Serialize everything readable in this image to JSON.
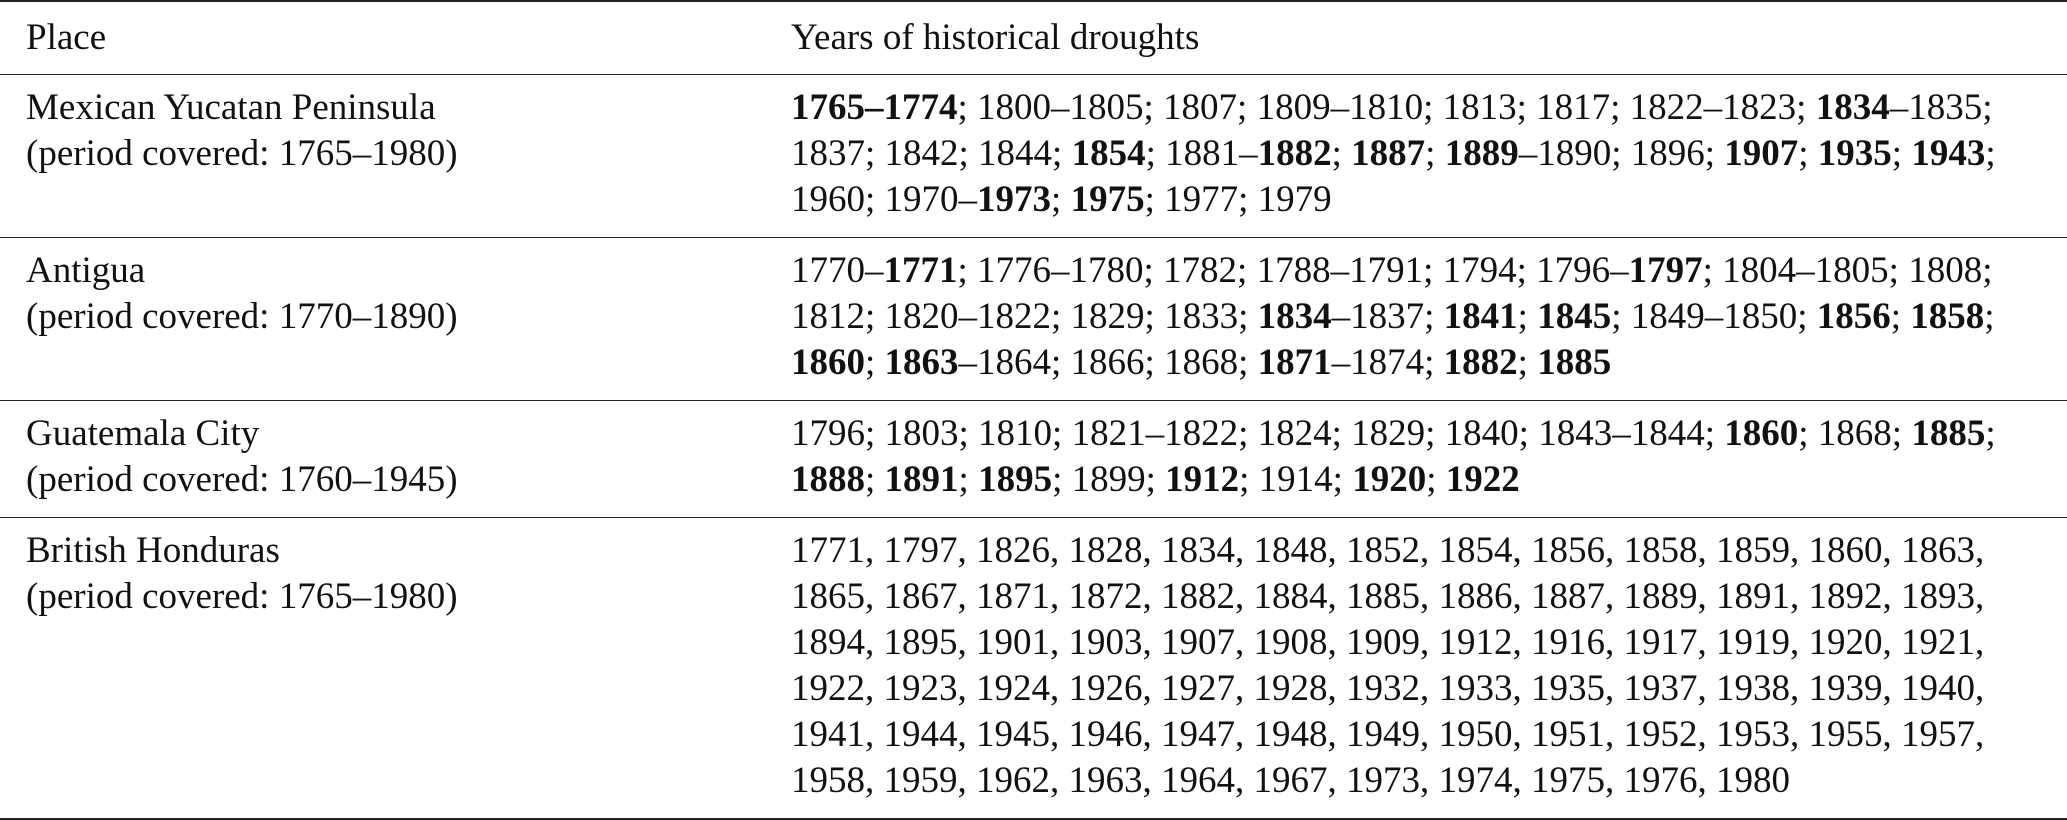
{
  "table": {
    "header": [
      "Place",
      "Years of historical droughts"
    ],
    "rows": [
      {
        "place": "Mexican Yucatan Peninsula",
        "period": "(period covered: 1765–1980)",
        "years": [
          {
            "text": "1765–1774",
            "bold": true
          },
          {
            "text": "; 1800–1805; 1807; 1809–1810; 1813; 1817; 1822–1823; ",
            "bold": false
          },
          {
            "text": "1834",
            "bold": true
          },
          {
            "text": "–1835; 1837; 1842; 1844; ",
            "bold": false
          },
          {
            "text": "1854",
            "bold": true
          },
          {
            "text": "; 1881–",
            "bold": false
          },
          {
            "text": "1882",
            "bold": true
          },
          {
            "text": "; ",
            "bold": false
          },
          {
            "text": "1887",
            "bold": true
          },
          {
            "text": "; ",
            "bold": false
          },
          {
            "text": "1889",
            "bold": true
          },
          {
            "text": "–1890; 1896; ",
            "bold": false
          },
          {
            "text": "1907",
            "bold": true
          },
          {
            "text": "; ",
            "bold": false
          },
          {
            "text": "1935",
            "bold": true
          },
          {
            "text": "; ",
            "bold": false
          },
          {
            "text": "1943",
            "bold": true
          },
          {
            "text": "; 1960; 1970–",
            "bold": false
          },
          {
            "text": "1973",
            "bold": true
          },
          {
            "text": "; ",
            "bold": false
          },
          {
            "text": "1975",
            "bold": true
          },
          {
            "text": "; 1977; 1979",
            "bold": false
          }
        ]
      },
      {
        "place": "Antigua",
        "period": "(period covered: 1770–1890)",
        "years": [
          {
            "text": "1770–",
            "bold": false
          },
          {
            "text": "1771",
            "bold": true
          },
          {
            "text": "; 1776–1780; 1782; 1788–1791; 1794; 1796–",
            "bold": false
          },
          {
            "text": "1797",
            "bold": true
          },
          {
            "text": "; 1804–1805; 1808; 1812; 1820–1822; 1829; 1833; ",
            "bold": false
          },
          {
            "text": "1834",
            "bold": true
          },
          {
            "text": "–1837; ",
            "bold": false
          },
          {
            "text": "1841",
            "bold": true
          },
          {
            "text": "; ",
            "bold": false
          },
          {
            "text": "1845",
            "bold": true
          },
          {
            "text": "; 1849–1850; ",
            "bold": false
          },
          {
            "text": "1856",
            "bold": true
          },
          {
            "text": "; ",
            "bold": false
          },
          {
            "text": "1858",
            "bold": true
          },
          {
            "text": "; ",
            "bold": false
          },
          {
            "text": "1860",
            "bold": true
          },
          {
            "text": "; ",
            "bold": false
          },
          {
            "text": "1863",
            "bold": true
          },
          {
            "text": "–1864; 1866; 1868; ",
            "bold": false
          },
          {
            "text": "1871",
            "bold": true
          },
          {
            "text": "–1874; ",
            "bold": false
          },
          {
            "text": "1882",
            "bold": true
          },
          {
            "text": "; ",
            "bold": false
          },
          {
            "text": "1885",
            "bold": true
          }
        ]
      },
      {
        "place": "Guatemala City",
        "period": "(period covered: 1760–1945)",
        "years": [
          {
            "text": "1796; 1803; 1810; 1821–1822; 1824; 1829; 1840; 1843–1844; ",
            "bold": false
          },
          {
            "text": "1860",
            "bold": true
          },
          {
            "text": "; 1868; ",
            "bold": false
          },
          {
            "text": "1885",
            "bold": true
          },
          {
            "text": "; ",
            "bold": false
          },
          {
            "text": "1888",
            "bold": true
          },
          {
            "text": "; ",
            "bold": false
          },
          {
            "text": "1891",
            "bold": true
          },
          {
            "text": "; ",
            "bold": false
          },
          {
            "text": "1895",
            "bold": true
          },
          {
            "text": "; 1899; ",
            "bold": false
          },
          {
            "text": "1912",
            "bold": true
          },
          {
            "text": "; 1914; ",
            "bold": false
          },
          {
            "text": "1920",
            "bold": true
          },
          {
            "text": "; ",
            "bold": false
          },
          {
            "text": "1922",
            "bold": true
          }
        ]
      },
      {
        "place": "British Honduras",
        "period": "(period covered: 1765–1980)",
        "years": [
          {
            "text": "1771, 1797, 1826, 1828, 1834, 1848, 1852, 1854, 1856, 1858, 1859, 1860, 1863, 1865, 1867, 1871, 1872, 1882, 1884, 1885, 1886, 1887, 1889, 1891, 1892, 1893, 1894, 1895, 1901, 1903, 1907, 1908, 1909, 1912, 1916, 1917, 1919, 1920, 1921, 1922, 1923, 1924, 1926, 1927, 1928, 1932, 1933, 1935, 1937, 1938, 1939, 1940, 1941, 1944, 1945, 1946, 1947, 1948, 1949, 1950, 1951, 1952, 1953, 1955, 1957, 1958, 1959, 1962, 1963, 1964, 1967, 1973, 1974, 1975, 1976, 1980",
            "bold": false
          }
        ]
      }
    ]
  }
}
